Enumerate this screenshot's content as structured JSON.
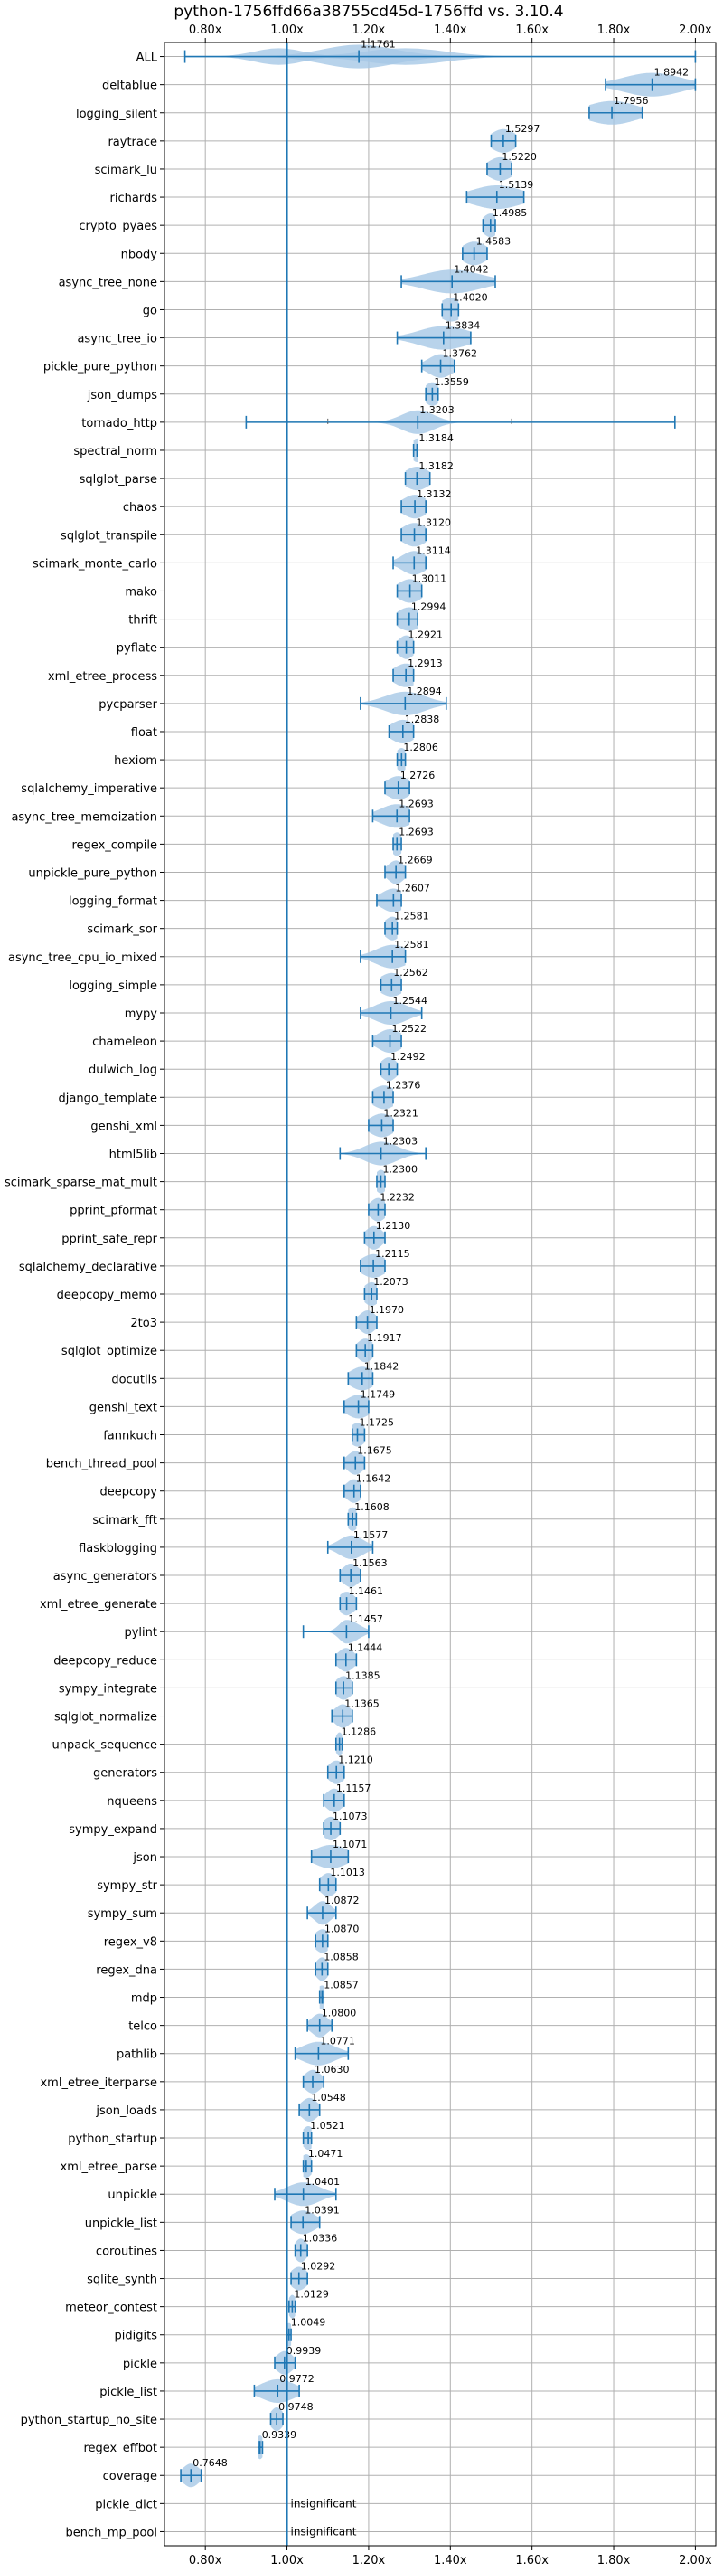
{
  "chart_data": {
    "type": "violin",
    "title": "python-1756ffd66a38755cd45d-1756ffd vs. 3.10.4",
    "xlim": [
      0.7,
      2.05
    ],
    "xticks": [
      0.8,
      1.0,
      1.2,
      1.4,
      1.6,
      1.8,
      2.0
    ],
    "xtick_labels": [
      "0.80x",
      "1.00x",
      "1.20x",
      "1.40x",
      "1.60x",
      "1.80x",
      "2.00x"
    ],
    "reference_x": 1.0,
    "grid": true,
    "color": "#1f77b4",
    "fill_color": "#a6c8e6",
    "benchmarks": [
      {
        "name": "ALL",
        "median": 1.1761,
        "label": "1.1761",
        "min": 0.75,
        "max": 2.0,
        "spread": 0.09,
        "extra": [
          [
            0.98,
            0.06
          ],
          [
            1.29,
            0.1
          ]
        ]
      },
      {
        "name": "deltablue",
        "median": 1.8942,
        "label": "1.8942",
        "min": 1.78,
        "max": 2.0,
        "spread": 0.07
      },
      {
        "name": "logging_silent",
        "median": 1.7956,
        "label": "1.7956",
        "min": 1.74,
        "max": 1.87,
        "spread": 0.06
      },
      {
        "name": "raytrace",
        "median": 1.5297,
        "label": "1.5297",
        "min": 1.5,
        "max": 1.56,
        "spread": 0.03
      },
      {
        "name": "scimark_lu",
        "median": 1.522,
        "label": "1.5220",
        "min": 1.49,
        "max": 1.55,
        "spread": 0.03
      },
      {
        "name": "richards",
        "median": 1.5139,
        "label": "1.5139",
        "min": 1.44,
        "max": 1.58,
        "spread": 0.06
      },
      {
        "name": "crypto_pyaes",
        "median": 1.4985,
        "label": "1.4985",
        "min": 1.48,
        "max": 1.51,
        "spread": 0.02
      },
      {
        "name": "nbody",
        "median": 1.4583,
        "label": "1.4583",
        "min": 1.43,
        "max": 1.49,
        "spread": 0.03
      },
      {
        "name": "async_tree_none",
        "median": 1.4042,
        "label": "1.4042",
        "min": 1.28,
        "max": 1.51,
        "spread": 0.07
      },
      {
        "name": "go",
        "median": 1.402,
        "label": "1.4020",
        "min": 1.38,
        "max": 1.42,
        "spread": 0.03
      },
      {
        "name": "async_tree_io",
        "median": 1.3834,
        "label": "1.3834",
        "min": 1.27,
        "max": 1.45,
        "spread": 0.06
      },
      {
        "name": "pickle_pure_python",
        "median": 1.3762,
        "label": "1.3762",
        "min": 1.33,
        "max": 1.41,
        "spread": 0.03
      },
      {
        "name": "json_dumps",
        "median": 1.3559,
        "label": "1.3559",
        "min": 1.34,
        "max": 1.37,
        "spread": 0.02
      },
      {
        "name": "tornado_http",
        "median": 1.3203,
        "label": "1.3203",
        "min": 0.9,
        "max": 1.95,
        "spread": 0.04,
        "dashes": [
          1.1,
          1.55
        ]
      },
      {
        "name": "spectral_norm",
        "median": 1.3184,
        "label": "1.3184",
        "min": 1.31,
        "max": 1.32,
        "spread": 0.015
      },
      {
        "name": "sqlglot_parse",
        "median": 1.3182,
        "label": "1.3182",
        "min": 1.29,
        "max": 1.35,
        "spread": 0.03
      },
      {
        "name": "chaos",
        "median": 1.3132,
        "label": "1.3132",
        "min": 1.28,
        "max": 1.34,
        "spread": 0.03
      },
      {
        "name": "sqlglot_transpile",
        "median": 1.312,
        "label": "1.3120",
        "min": 1.28,
        "max": 1.34,
        "spread": 0.03
      },
      {
        "name": "scimark_monte_carlo",
        "median": 1.3114,
        "label": "1.3114",
        "min": 1.26,
        "max": 1.34,
        "spread": 0.03
      },
      {
        "name": "mako",
        "median": 1.3011,
        "label": "1.3011",
        "min": 1.27,
        "max": 1.33,
        "spread": 0.03
      },
      {
        "name": "thrift",
        "median": 1.2994,
        "label": "1.2994",
        "min": 1.27,
        "max": 1.32,
        "spread": 0.03
      },
      {
        "name": "pyflate",
        "median": 1.2921,
        "label": "1.2921",
        "min": 1.27,
        "max": 1.31,
        "spread": 0.02
      },
      {
        "name": "xml_etree_process",
        "median": 1.2913,
        "label": "1.2913",
        "min": 1.26,
        "max": 1.31,
        "spread": 0.03
      },
      {
        "name": "pycparser",
        "median": 1.2894,
        "label": "1.2894",
        "min": 1.18,
        "max": 1.39,
        "spread": 0.05
      },
      {
        "name": "float",
        "median": 1.2838,
        "label": "1.2838",
        "min": 1.25,
        "max": 1.31,
        "spread": 0.03
      },
      {
        "name": "hexiom",
        "median": 1.2806,
        "label": "1.2806",
        "min": 1.27,
        "max": 1.29,
        "spread": 0.015
      },
      {
        "name": "sqlalchemy_imperative",
        "median": 1.2726,
        "label": "1.2726",
        "min": 1.24,
        "max": 1.3,
        "spread": 0.03
      },
      {
        "name": "async_tree_memoization",
        "median": 1.2693,
        "label": "1.2693",
        "min": 1.21,
        "max": 1.3,
        "spread": 0.04
      },
      {
        "name": "regex_compile",
        "median": 1.2693,
        "label": "1.2693",
        "min": 1.26,
        "max": 1.28,
        "spread": 0.015
      },
      {
        "name": "unpickle_pure_python",
        "median": 1.2669,
        "label": "1.2669",
        "min": 1.24,
        "max": 1.29,
        "spread": 0.02
      },
      {
        "name": "logging_format",
        "median": 1.2607,
        "label": "1.2607",
        "min": 1.22,
        "max": 1.28,
        "spread": 0.03
      },
      {
        "name": "scimark_sor",
        "median": 1.2581,
        "label": "1.2581",
        "min": 1.24,
        "max": 1.27,
        "spread": 0.02
      },
      {
        "name": "async_tree_cpu_io_mixed",
        "median": 1.2581,
        "label": "1.2581",
        "min": 1.18,
        "max": 1.29,
        "spread": 0.04
      },
      {
        "name": "logging_simple",
        "median": 1.2562,
        "label": "1.2562",
        "min": 1.23,
        "max": 1.28,
        "spread": 0.03
      },
      {
        "name": "mypy",
        "median": 1.2544,
        "label": "1.2544",
        "min": 1.18,
        "max": 1.33,
        "spread": 0.04
      },
      {
        "name": "chameleon",
        "median": 1.2522,
        "label": "1.2522",
        "min": 1.21,
        "max": 1.28,
        "spread": 0.03
      },
      {
        "name": "dulwich_log",
        "median": 1.2492,
        "label": "1.2492",
        "min": 1.23,
        "max": 1.27,
        "spread": 0.02
      },
      {
        "name": "django_template",
        "median": 1.2376,
        "label": "1.2376",
        "min": 1.21,
        "max": 1.26,
        "spread": 0.03
      },
      {
        "name": "genshi_xml",
        "median": 1.2321,
        "label": "1.2321",
        "min": 1.2,
        "max": 1.26,
        "spread": 0.03
      },
      {
        "name": "html5lib",
        "median": 1.2303,
        "label": "1.2303",
        "min": 1.13,
        "max": 1.34,
        "spread": 0.04
      },
      {
        "name": "scimark_sparse_mat_mult",
        "median": 1.23,
        "label": "1.2300",
        "min": 1.22,
        "max": 1.24,
        "spread": 0.015
      },
      {
        "name": "pprint_pformat",
        "median": 1.2232,
        "label": "1.2232",
        "min": 1.2,
        "max": 1.24,
        "spread": 0.02
      },
      {
        "name": "pprint_safe_repr",
        "median": 1.213,
        "label": "1.2130",
        "min": 1.19,
        "max": 1.24,
        "spread": 0.02
      },
      {
        "name": "sqlalchemy_declarative",
        "median": 1.2115,
        "label": "1.2115",
        "min": 1.18,
        "max": 1.24,
        "spread": 0.03
      },
      {
        "name": "deepcopy_memo",
        "median": 1.2073,
        "label": "1.2073",
        "min": 1.19,
        "max": 1.22,
        "spread": 0.02
      },
      {
        "name": "2to3",
        "median": 1.197,
        "label": "1.1970",
        "min": 1.17,
        "max": 1.22,
        "spread": 0.02
      },
      {
        "name": "sqlglot_optimize",
        "median": 1.1917,
        "label": "1.1917",
        "min": 1.17,
        "max": 1.21,
        "spread": 0.02
      },
      {
        "name": "docutils",
        "median": 1.1842,
        "label": "1.1842",
        "min": 1.15,
        "max": 1.21,
        "spread": 0.03
      },
      {
        "name": "genshi_text",
        "median": 1.1749,
        "label": "1.1749",
        "min": 1.14,
        "max": 1.2,
        "spread": 0.03
      },
      {
        "name": "fannkuch",
        "median": 1.1725,
        "label": "1.1725",
        "min": 1.16,
        "max": 1.19,
        "spread": 0.02
      },
      {
        "name": "bench_thread_pool",
        "median": 1.1675,
        "label": "1.1675",
        "min": 1.14,
        "max": 1.19,
        "spread": 0.02
      },
      {
        "name": "deepcopy",
        "median": 1.1642,
        "label": "1.1642",
        "min": 1.14,
        "max": 1.18,
        "spread": 0.02
      },
      {
        "name": "scimark_fft",
        "median": 1.1608,
        "label": "1.1608",
        "min": 1.15,
        "max": 1.17,
        "spread": 0.015
      },
      {
        "name": "flaskblogging",
        "median": 1.1577,
        "label": "1.1577",
        "min": 1.1,
        "max": 1.21,
        "spread": 0.03
      },
      {
        "name": "async_generators",
        "median": 1.1563,
        "label": "1.1563",
        "min": 1.13,
        "max": 1.18,
        "spread": 0.02
      },
      {
        "name": "xml_etree_generate",
        "median": 1.1461,
        "label": "1.1461",
        "min": 1.13,
        "max": 1.17,
        "spread": 0.02
      },
      {
        "name": "pylint",
        "median": 1.1457,
        "label": "1.1457",
        "min": 1.04,
        "max": 1.2,
        "spread": 0.03,
        "shape": "skew-left"
      },
      {
        "name": "deepcopy_reduce",
        "median": 1.1444,
        "label": "1.1444",
        "min": 1.12,
        "max": 1.17,
        "spread": 0.02
      },
      {
        "name": "sympy_integrate",
        "median": 1.1385,
        "label": "1.1385",
        "min": 1.12,
        "max": 1.16,
        "spread": 0.02
      },
      {
        "name": "sqlglot_normalize",
        "median": 1.1365,
        "label": "1.1365",
        "min": 1.11,
        "max": 1.16,
        "spread": 0.02
      },
      {
        "name": "unpack_sequence",
        "median": 1.1286,
        "label": "1.1286",
        "min": 1.12,
        "max": 1.135,
        "spread": 0.01
      },
      {
        "name": "generators",
        "median": 1.121,
        "label": "1.1210",
        "min": 1.1,
        "max": 1.14,
        "spread": 0.02
      },
      {
        "name": "nqueens",
        "median": 1.1157,
        "label": "1.1157",
        "min": 1.09,
        "max": 1.14,
        "spread": 0.02
      },
      {
        "name": "sympy_expand",
        "median": 1.1073,
        "label": "1.1073",
        "min": 1.09,
        "max": 1.13,
        "spread": 0.02
      },
      {
        "name": "json",
        "median": 1.1071,
        "label": "1.1071",
        "min": 1.06,
        "max": 1.15,
        "spread": 0.04
      },
      {
        "name": "sympy_str",
        "median": 1.1013,
        "label": "1.1013",
        "min": 1.08,
        "max": 1.12,
        "spread": 0.02
      },
      {
        "name": "sympy_sum",
        "median": 1.0872,
        "label": "1.0872",
        "min": 1.05,
        "max": 1.12,
        "spread": 0.02
      },
      {
        "name": "regex_v8",
        "median": 1.087,
        "label": "1.0870",
        "min": 1.07,
        "max": 1.1,
        "spread": 0.02
      },
      {
        "name": "regex_dna",
        "median": 1.0858,
        "label": "1.0858",
        "min": 1.07,
        "max": 1.1,
        "spread": 0.015
      },
      {
        "name": "mdp",
        "median": 1.0857,
        "label": "1.0857",
        "min": 1.08,
        "max": 1.09,
        "spread": 0.015
      },
      {
        "name": "telco",
        "median": 1.08,
        "label": "1.0800",
        "min": 1.05,
        "max": 1.11,
        "spread": 0.02
      },
      {
        "name": "pathlib",
        "median": 1.0771,
        "label": "1.0771",
        "min": 1.02,
        "max": 1.15,
        "spread": 0.04
      },
      {
        "name": "xml_etree_iterparse",
        "median": 1.063,
        "label": "1.0630",
        "min": 1.04,
        "max": 1.09,
        "spread": 0.02
      },
      {
        "name": "json_loads",
        "median": 1.0548,
        "label": "1.0548",
        "min": 1.03,
        "max": 1.08,
        "spread": 0.02
      },
      {
        "name": "python_startup",
        "median": 1.0521,
        "label": "1.0521",
        "min": 1.04,
        "max": 1.06,
        "spread": 0.015
      },
      {
        "name": "xml_etree_parse",
        "median": 1.0471,
        "label": "1.0471",
        "min": 1.04,
        "max": 1.06,
        "spread": 0.015
      },
      {
        "name": "unpickle",
        "median": 1.0401,
        "label": "1.0401",
        "min": 0.97,
        "max": 1.12,
        "spread": 0.04
      },
      {
        "name": "unpickle_list",
        "median": 1.0391,
        "label": "1.0391",
        "min": 1.01,
        "max": 1.08,
        "spread": 0.03
      },
      {
        "name": "coroutines",
        "median": 1.0336,
        "label": "1.0336",
        "min": 1.02,
        "max": 1.05,
        "spread": 0.015
      },
      {
        "name": "sqlite_synth",
        "median": 1.0292,
        "label": "1.0292",
        "min": 1.01,
        "max": 1.05,
        "spread": 0.02
      },
      {
        "name": "meteor_contest",
        "median": 1.0129,
        "label": "1.0129",
        "min": 1.005,
        "max": 1.02,
        "spread": 0.01
      },
      {
        "name": "pidigits",
        "median": 1.0049,
        "label": "1.0049",
        "min": 1.0,
        "max": 1.01,
        "spread": 0.01
      },
      {
        "name": "pickle",
        "median": 0.9939,
        "label": "0.9939",
        "min": 0.97,
        "max": 1.02,
        "spread": 0.02
      },
      {
        "name": "pickle_list",
        "median": 0.9772,
        "label": "0.9772",
        "min": 0.92,
        "max": 1.03,
        "spread": 0.04
      },
      {
        "name": "python_startup_no_site",
        "median": 0.9748,
        "label": "0.9748",
        "min": 0.96,
        "max": 0.99,
        "spread": 0.015
      },
      {
        "name": "regex_effbot",
        "median": 0.9339,
        "label": "0.9339",
        "min": 0.93,
        "max": 0.94,
        "spread": 0.01
      },
      {
        "name": "coverage",
        "median": 0.7648,
        "label": "0.7648",
        "min": 0.74,
        "max": 0.79,
        "spread": 0.02
      },
      {
        "name": "pickle_dict",
        "insignificant": true,
        "label": "insignificant"
      },
      {
        "name": "bench_mp_pool",
        "insignificant": true,
        "label": "insignificant"
      }
    ]
  }
}
